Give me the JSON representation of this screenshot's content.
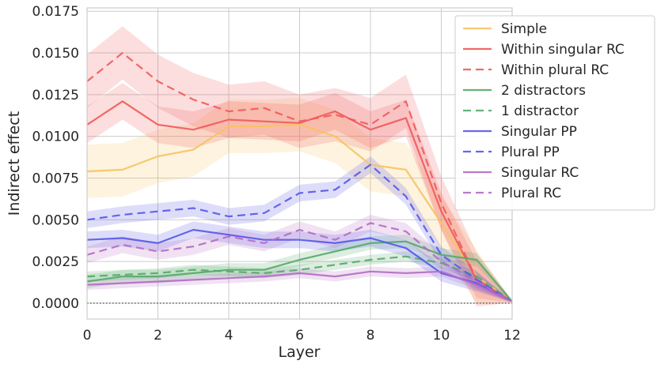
{
  "chart_data": {
    "type": "line",
    "title": "",
    "xlabel": "Layer",
    "ylabel": "Indirect effect",
    "xlim": [
      0,
      12
    ],
    "ylim": [
      -0.00095,
      0.0177
    ],
    "x_ticks": [
      0,
      2,
      4,
      6,
      8,
      10,
      12
    ],
    "x_tick_labels": [
      "0",
      "2",
      "4",
      "6",
      "8",
      "10",
      "12"
    ],
    "y_ticks": [
      0.0,
      0.0025,
      0.005,
      0.0075,
      0.01,
      0.0125,
      0.015,
      0.0175
    ],
    "y_tick_labels": [
      "0.0000",
      "0.0025",
      "0.0050",
      "0.0075",
      "0.0100",
      "0.0125",
      "0.0150",
      "0.0175"
    ],
    "grid": true,
    "legend_position": "top-right",
    "zero_line": 0.0,
    "x": [
      0,
      1,
      2,
      3,
      4,
      5,
      6,
      7,
      8,
      9,
      10,
      11,
      12
    ],
    "series": [
      {
        "name": "Simple",
        "color": "#f7c35f",
        "dash": "solid",
        "values": [
          0.0079,
          0.008,
          0.0088,
          0.0092,
          0.0106,
          0.0106,
          0.0107,
          0.01,
          0.0083,
          0.008,
          0.0048,
          0.0016,
          0.0001
        ],
        "band": 0.0016
      },
      {
        "name": "Within singular RC",
        "color": "#f05a5a",
        "dash": "solid",
        "values": [
          0.0107,
          0.0121,
          0.0107,
          0.0104,
          0.011,
          0.0109,
          0.0108,
          0.0115,
          0.0104,
          0.0111,
          0.0055,
          0.0014,
          0.0001
        ],
        "band": 0.0011
      },
      {
        "name": "Within plural RC",
        "color": "#f05a5a",
        "dash": "dashed",
        "values": [
          0.0133,
          0.015,
          0.0133,
          0.0122,
          0.0115,
          0.0117,
          0.0109,
          0.0113,
          0.0107,
          0.0121,
          0.006,
          0.0014,
          0.0001
        ],
        "band": 0.0016
      },
      {
        "name": "2 distractors",
        "color": "#55a868",
        "dash": "solid",
        "values": [
          0.0013,
          0.0016,
          0.0016,
          0.0018,
          0.002,
          0.002,
          0.0026,
          0.0031,
          0.0036,
          0.0037,
          0.0029,
          0.0026,
          0.0001
        ],
        "band": 0.0004
      },
      {
        "name": "1 distractor",
        "color": "#55a868",
        "dash": "dashed",
        "values": [
          0.0016,
          0.0017,
          0.0018,
          0.002,
          0.0019,
          0.0018,
          0.002,
          0.0023,
          0.0026,
          0.0028,
          0.0024,
          0.0016,
          0.0001
        ],
        "band": 0.0003
      },
      {
        "name": "Singular PP",
        "color": "#5656e8",
        "dash": "solid",
        "values": [
          0.0038,
          0.0039,
          0.0036,
          0.0044,
          0.0041,
          0.0038,
          0.0038,
          0.0036,
          0.0039,
          0.0033,
          0.0018,
          0.0012,
          0.0001
        ],
        "band": 0.0005
      },
      {
        "name": "Plural PP",
        "color": "#5656e8",
        "dash": "dashed",
        "values": [
          0.005,
          0.0053,
          0.0055,
          0.0057,
          0.0052,
          0.0054,
          0.0066,
          0.0068,
          0.0083,
          0.0064,
          0.0029,
          0.0014,
          0.0001
        ],
        "band": 0.0005
      },
      {
        "name": "Singular RC",
        "color": "#b26cc4",
        "dash": "solid",
        "values": [
          0.0011,
          0.0012,
          0.0013,
          0.0014,
          0.0015,
          0.0016,
          0.0018,
          0.0016,
          0.0019,
          0.0018,
          0.0019,
          0.0011,
          0.0001
        ],
        "band": 0.0003
      },
      {
        "name": "Plural RC",
        "color": "#b26cc4",
        "dash": "dashed",
        "values": [
          0.0029,
          0.0035,
          0.0031,
          0.0034,
          0.004,
          0.0036,
          0.0044,
          0.0038,
          0.0048,
          0.0043,
          0.0025,
          0.0013,
          0.0001
        ],
        "band": 0.0005
      }
    ]
  }
}
